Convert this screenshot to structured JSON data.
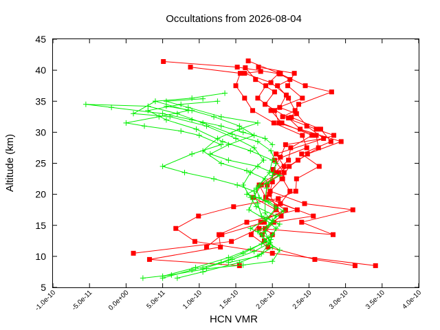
{
  "chart_data": {
    "type": "scatter",
    "title": "Occultations from 2026-08-04",
    "xlabel": "HCN VMR",
    "ylabel": "Altitude (km)",
    "xlim": [
      -1e-10,
      4e-10
    ],
    "ylim": [
      5,
      45
    ],
    "x_ticks": [
      -1e-10,
      -5e-11,
      0.0,
      5e-11,
      1e-10,
      1.5e-10,
      2e-10,
      2.5e-10,
      3e-10,
      3.5e-10,
      4e-10
    ],
    "x_tick_labels": [
      "-1.0e-10",
      "-5.0e-11",
      "0.0e+00",
      "5.0e-11",
      "1.0e-10",
      "1.5e-10",
      "2.0e-10",
      "2.5e-10",
      "3.0e-10",
      "3.5e-10",
      "4.0e-10"
    ],
    "y_ticks": [
      5,
      10,
      15,
      20,
      25,
      30,
      35,
      40,
      45
    ],
    "y_tick_labels": [
      "5",
      "10",
      "15",
      "20",
      "25",
      "30",
      "35",
      "40",
      "45"
    ],
    "grid": false,
    "legend": "none",
    "series": [
      {
        "color": "#ff0000",
        "marker": "square",
        "points": [
          [
            3.41e-10,
            8.5
          ],
          [
            2e-10,
            10.5
          ],
          [
            9.4e-11,
            12.4
          ],
          [
            6.8e-11,
            14.5
          ],
          [
            9.9e-11,
            16.5
          ],
          [
            1.47e-10,
            18.0
          ],
          [
            2.08e-10,
            19.3
          ],
          [
            2.32e-10,
            20.5
          ],
          [
            2.33e-10,
            22.5
          ],
          [
            2.64e-10,
            24.5
          ],
          [
            2.4e-10,
            26.5
          ],
          [
            2.8e-10,
            28.5
          ],
          [
            2.66e-10,
            30.5
          ],
          [
            2.26e-10,
            32.4
          ],
          [
            2.36e-10,
            34.5
          ],
          [
            2.81e-10,
            36.5
          ],
          [
            2.45e-10,
            37.5
          ],
          [
            2.11e-10,
            39.4
          ],
          [
            1.52e-10,
            40.5
          ],
          [
            5.1e-11,
            41.4
          ]
        ]
      },
      {
        "color": "#ff0000",
        "marker": "square",
        "points": [
          [
            3.13e-10,
            8.5
          ],
          [
            2.58e-10,
            9.5
          ],
          [
            1.94e-10,
            11.5
          ],
          [
            1.71e-10,
            13.5
          ],
          [
            1.84e-10,
            15.5
          ],
          [
            2.18e-10,
            17.5
          ],
          [
            1.91e-10,
            19.5
          ],
          [
            1.82e-10,
            21.5
          ],
          [
            2.09e-10,
            23.5
          ],
          [
            2.35e-10,
            25.5
          ],
          [
            2.63e-10,
            27.5
          ],
          [
            2.6e-10,
            29.5
          ],
          [
            2.09e-10,
            31.5
          ],
          [
            2.03e-10,
            33.5
          ],
          [
            1.8e-10,
            35.5
          ],
          [
            1.91e-10,
            37.5
          ],
          [
            2.09e-10,
            39.5
          ],
          [
            1.67e-10,
            41.5
          ]
        ]
      },
      {
        "color": "#ff0000",
        "marker": "square",
        "points": [
          [
            1.55e-10,
            8.5
          ],
          [
            3.2e-11,
            9.5
          ],
          [
            1.29e-10,
            11.5
          ],
          [
            1.27e-10,
            13.5
          ],
          [
            1.65e-10,
            15.5
          ],
          [
            2.34e-10,
            17.5
          ],
          [
            1.91e-10,
            19.5
          ],
          [
            1.93e-10,
            21.5
          ],
          [
            2.03e-10,
            23.5
          ],
          [
            2.22e-10,
            25.5
          ],
          [
            2.25e-10,
            27.5
          ],
          [
            2.54e-10,
            29.5
          ],
          [
            2.13e-10,
            31.5
          ],
          [
            1.98e-10,
            33.5
          ],
          [
            2.41e-10,
            35.5
          ],
          [
            2.21e-10,
            37.5
          ],
          [
            2.3e-10,
            39.5
          ],
          [
            1.81e-10,
            40.5
          ]
        ]
      },
      {
        "color": "#ff0000",
        "marker": "square",
        "points": [
          [
            1e-11,
            10.5
          ],
          [
            1.44e-10,
            12.4
          ],
          [
            1.82e-10,
            14.5
          ],
          [
            2.83e-10,
            13.5
          ],
          [
            2.4e-10,
            15.5
          ],
          [
            3.1e-10,
            17.5
          ],
          [
            2.44e-10,
            18.5
          ],
          [
            1.97e-10,
            20.5
          ],
          [
            2.13e-10,
            22.5
          ],
          [
            2.23e-10,
            24.5
          ],
          [
            2.48e-10,
            26.5
          ],
          [
            2.94e-10,
            28.5
          ],
          [
            2.38e-10,
            30.5
          ],
          [
            2.22e-10,
            32.3
          ],
          [
            1.9e-10,
            34.5
          ],
          [
            2.03e-10,
            36.5
          ],
          [
            1.77e-10,
            38.5
          ],
          [
            1.63e-10,
            40.4
          ]
        ]
      },
      {
        "color": "#ff0000",
        "marker": "square",
        "points": [
          [
            1.1e-10,
            11.5
          ],
          [
            1.31e-10,
            13.5
          ],
          [
            1.89e-10,
            15.5
          ],
          [
            2.05e-10,
            17.5
          ],
          [
            1.74e-10,
            19.5
          ],
          [
            1.85e-10,
            21.5
          ],
          [
            2.16e-10,
            23.5
          ],
          [
            2.03e-10,
            25.5
          ],
          [
            2.47e-10,
            27.5
          ],
          [
            2.41e-10,
            29.5
          ],
          [
            2.02e-10,
            31.5
          ],
          [
            1.73e-10,
            33.5
          ],
          [
            1.62e-10,
            35.5
          ],
          [
            1.5e-10,
            37.5
          ],
          [
            1.56e-10,
            39.5
          ],
          [
            8.8e-11,
            40.5
          ]
        ]
      },
      {
        "color": "#ff0000",
        "marker": "square",
        "points": [
          [
            1.86e-10,
            13.5
          ],
          [
            2.02e-10,
            15.5
          ],
          [
            2.56e-10,
            16.5
          ],
          [
            2.11e-10,
            18.5
          ],
          [
            2.24e-10,
            20.5
          ],
          [
            2.14e-10,
            22.5
          ],
          [
            2.16e-10,
            24.5
          ],
          [
            2.05e-10,
            26.5
          ],
          [
            2.84e-10,
            29.5
          ],
          [
            2.6e-10,
            30.5
          ],
          [
            2.14e-10,
            32.5
          ],
          [
            2.31e-10,
            33.5
          ],
          [
            2.22e-10,
            35.5
          ],
          [
            2.07e-10,
            37.5
          ],
          [
            2.24e-10,
            38.5
          ],
          [
            2.1e-10,
            39.4
          ]
        ]
      },
      {
        "color": "#ff0000",
        "marker": "square",
        "points": [
          [
            1.89e-10,
            12.5
          ],
          [
            2e-10,
            13.5
          ],
          [
            1.9e-10,
            14.5
          ],
          [
            2.12e-10,
            16.5
          ],
          [
            2.05e-10,
            18.0
          ],
          [
            1.96e-10,
            20.0
          ],
          [
            2e-10,
            22.0
          ],
          [
            2.01e-10,
            24.0
          ],
          [
            2.11e-10,
            26.0
          ],
          [
            2.18e-10,
            28.0
          ],
          [
            2.7e-10,
            29.0
          ],
          [
            2.47e-10,
            31.0
          ],
          [
            2.33e-10,
            33.0
          ],
          [
            2.1e-10,
            34.0
          ],
          [
            2.19e-10,
            36.0
          ],
          [
            1.98e-10,
            38.0
          ],
          [
            1.62e-10,
            39.5
          ],
          [
            1.84e-10,
            39.8
          ]
        ]
      },
      {
        "color": "#00ee00",
        "marker": "plus",
        "points": [
          [
            2.3e-11,
            6.5
          ],
          [
            6.2e-11,
            7.0
          ],
          [
            1.1e-10,
            8.0
          ],
          [
            1.6e-10,
            8.6
          ],
          [
            2e-10,
            9.2
          ],
          [
            2.1e-10,
            11.0
          ],
          [
            1.9e-10,
            12.5
          ],
          [
            1.8e-10,
            14.0
          ],
          [
            2e-10,
            15.5
          ],
          [
            1.9e-10,
            17.0
          ],
          [
            1.9e-10,
            19.0
          ],
          [
            1.92e-10,
            21.0
          ],
          [
            2e-10,
            23.0
          ],
          [
            2.05e-10,
            25.0
          ],
          [
            1.98e-10,
            27.0
          ],
          [
            1.8e-10,
            28.5
          ],
          [
            1.45e-10,
            29.7
          ],
          [
            1.05e-10,
            31.5
          ],
          [
            7e-11,
            33.0
          ],
          [
            3e-11,
            34.2
          ],
          [
            -5.5e-11,
            34.5
          ],
          [
            -2e-11,
            34.0
          ],
          [
            5e-11,
            33.0
          ],
          [
            9e-11,
            32.0
          ],
          [
            1.3e-10,
            31.0
          ],
          [
            1.6e-10,
            30.0
          ],
          [
            1.9e-10,
            29.0
          ],
          [
            2e-10,
            28.0
          ]
        ]
      },
      {
        "color": "#00ee00",
        "marker": "plus",
        "points": [
          [
            7e-11,
            6.5
          ],
          [
            1.05e-10,
            7.5
          ],
          [
            1.55e-10,
            9.0
          ],
          [
            1.85e-10,
            10.4
          ],
          [
            1.95e-10,
            12.0
          ],
          [
            1.85e-10,
            13.5
          ],
          [
            1.95e-10,
            15.0
          ],
          [
            2.05e-10,
            16.5
          ],
          [
            1.78e-10,
            18.0
          ],
          [
            1.7e-10,
            19.5
          ],
          [
            1.6e-10,
            21.5
          ],
          [
            1.7e-10,
            23.5
          ],
          [
            1.88e-10,
            25.5
          ],
          [
            1.75e-10,
            27.5
          ],
          [
            1.5e-10,
            29.0
          ],
          [
            1.1e-10,
            31.0
          ],
          [
            6e-11,
            32.5
          ],
          [
            1e-11,
            33.0
          ],
          [
            4e-11,
            35.0
          ],
          [
            9e-11,
            35.5
          ],
          [
            1.35e-10,
            36.3
          ]
        ]
      },
      {
        "color": "#00ee00",
        "marker": "plus",
        "points": [
          [
            5e-11,
            6.8
          ],
          [
            9.5e-11,
            8.2
          ],
          [
            1.4e-10,
            9.8
          ],
          [
            1.7e-10,
            11.2
          ],
          [
            1.98e-10,
            12.7
          ],
          [
            2.05e-10,
            14.5
          ],
          [
            1.9e-10,
            16.0
          ],
          [
            1.68e-10,
            17.5
          ],
          [
            1.75e-10,
            19.5
          ],
          [
            1.82e-10,
            21.5
          ],
          [
            1.96e-10,
            23.5
          ],
          [
            2e-10,
            25.5
          ],
          [
            1.7e-10,
            27.0
          ],
          [
            1.32e-10,
            28.5
          ],
          [
            9.6e-11,
            30.5
          ],
          [
            5.5e-11,
            32.0
          ],
          [
            3e-11,
            33.5
          ],
          [
            7.5e-11,
            34.5
          ],
          [
            1.25e-10,
            35.0
          ]
        ]
      },
      {
        "color": "#00ee00",
        "marker": "plus",
        "points": [
          [
            5e-11,
            6.5
          ],
          [
            9e-11,
            7.8
          ],
          [
            1.3e-10,
            9.0
          ],
          [
            1.6e-10,
            10.5
          ],
          [
            1.85e-10,
            12.0
          ],
          [
            2e-10,
            13.5
          ],
          [
            2.1e-10,
            15.2
          ],
          [
            1.85e-10,
            16.5
          ],
          [
            1.8e-10,
            18.5
          ],
          [
            1.75e-10,
            20.5
          ],
          [
            1.52e-10,
            21.5
          ],
          [
            1.2e-10,
            22.5
          ],
          [
            8e-11,
            23.5
          ],
          [
            5e-11,
            24.5
          ],
          [
            9e-11,
            26.5
          ],
          [
            1.3e-10,
            28.0
          ],
          [
            1e-10,
            29.5
          ],
          [
            7.5e-11,
            30.2
          ],
          [
            2.5e-11,
            31.0
          ],
          [
            0.0,
            31.5
          ],
          [
            4.5e-11,
            32.5
          ],
          [
            8.5e-11,
            33.5
          ],
          [
            4e-11,
            35.0
          ]
        ]
      },
      {
        "color": "#00ee00",
        "marker": "plus",
        "points": [
          [
            1.05e-10,
            8.0
          ],
          [
            1.45e-10,
            9.5
          ],
          [
            1.75e-10,
            10.8
          ],
          [
            1.97e-10,
            12.2
          ],
          [
            1.9e-10,
            14.0
          ],
          [
            2e-10,
            15.8
          ],
          [
            2.15e-10,
            17.3
          ],
          [
            1.95e-10,
            18.8
          ],
          [
            1.65e-10,
            20.0
          ],
          [
            1.92e-10,
            21.8
          ],
          [
            2.1e-10,
            23.0
          ],
          [
            1.8e-10,
            24.5
          ],
          [
            1.4e-10,
            25.5
          ],
          [
            1.15e-10,
            26.5
          ],
          [
            1.4e-10,
            28.0
          ],
          [
            1.75e-10,
            29.5
          ],
          [
            1.55e-10,
            31.0
          ],
          [
            1.2e-10,
            32.5
          ],
          [
            9e-11,
            33.5
          ],
          [
            5.5e-11,
            34.2
          ]
        ]
      },
      {
        "color": "#00ee00",
        "marker": "plus",
        "points": [
          [
            1.4e-10,
            9.0
          ],
          [
            1.8e-10,
            10.0
          ],
          [
            2e-10,
            11.5
          ],
          [
            1.95e-10,
            13.0
          ],
          [
            1.7e-10,
            14.5
          ],
          [
            1.92e-10,
            16.0
          ],
          [
            2.05e-10,
            17.8
          ],
          [
            1.82e-10,
            19.5
          ],
          [
            1.78e-10,
            21.0
          ],
          [
            1.9e-10,
            22.5
          ],
          [
            1.65e-10,
            23.8
          ],
          [
            1.3e-10,
            25.0
          ],
          [
            1.05e-10,
            27.0
          ],
          [
            1.25e-10,
            29.0
          ],
          [
            1.55e-10,
            30.5
          ],
          [
            1.8e-10,
            31.5
          ],
          [
            1.3e-10,
            32.5
          ],
          [
            8.5e-11,
            34.0
          ],
          [
            5.5e-11,
            35.0
          ],
          [
            1.05e-10,
            35.4
          ]
        ]
      }
    ]
  }
}
